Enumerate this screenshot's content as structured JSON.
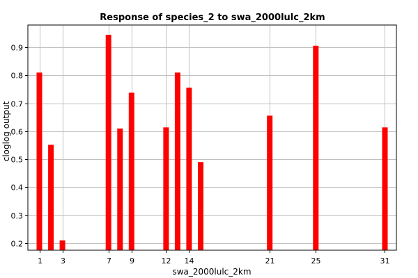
{
  "chart_data": {
    "type": "bar",
    "title": "Response of species_2 to swa_2000lulc_2km",
    "xlabel": "swa_2000lulc_2km",
    "ylabel": "cloglog output",
    "x": [
      1,
      2,
      3,
      7,
      8,
      9,
      12,
      13,
      14,
      15,
      21,
      25,
      31
    ],
    "values": [
      0.81,
      0.552,
      0.21,
      0.945,
      0.61,
      0.738,
      0.614,
      0.81,
      0.756,
      0.49,
      0.656,
      0.906,
      0.614
    ],
    "x_ticks": [
      1,
      3,
      7,
      9,
      12,
      14,
      21,
      25,
      31
    ],
    "y_ticks": [
      0.2,
      0.3,
      0.4,
      0.5,
      0.6,
      0.7,
      0.8,
      0.9
    ],
    "y_tick_labels": [
      "0.2",
      "0.3",
      "0.4",
      "0.5",
      "0.6",
      "0.7",
      "0.8",
      "0.9"
    ],
    "xlim": [
      0,
      32
    ],
    "ylim": [
      0.175,
      0.98
    ],
    "grid": true,
    "bar_color": "#ff0000",
    "grid_color": "#c0c0c0"
  }
}
